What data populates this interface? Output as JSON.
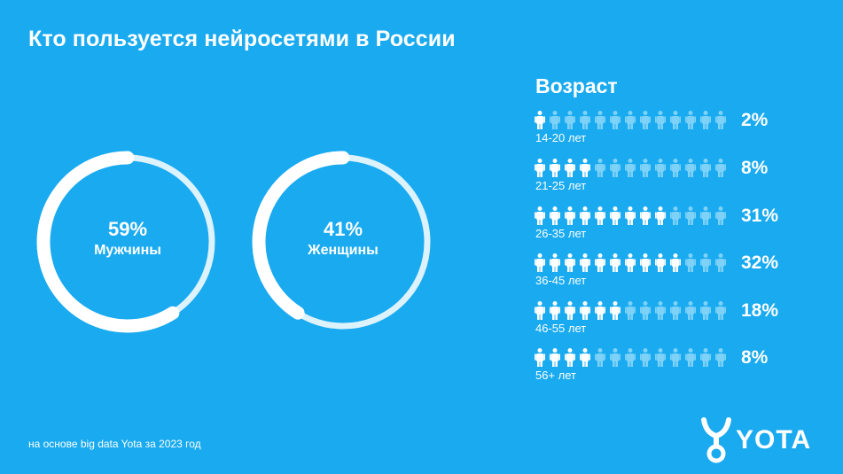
{
  "title": "Кто пользуется нейросетями в России",
  "chart_data": [
    {
      "type": "pie",
      "categories": [
        "Мужчины",
        "Женщины"
      ],
      "values": [
        59,
        41
      ],
      "value_labels": [
        "59%",
        "41%"
      ]
    },
    {
      "type": "bar",
      "title": "Возраст",
      "categories": [
        "14-20 лет",
        "21-25 лет",
        "26-35 лет",
        "36-45 лет",
        "46-55 лет",
        "56+ лет"
      ],
      "values": [
        2,
        8,
        31,
        32,
        18,
        8
      ],
      "value_labels": [
        "2%",
        "8%",
        "31%",
        "32%",
        "18%",
        "8%"
      ],
      "filled_icons": [
        1,
        4,
        9,
        10,
        6,
        4
      ],
      "icons_per_row": 13
    }
  ],
  "footnote": "на основе big data Yota за 2023 год",
  "logo": {
    "text": "YOTA",
    "icon": "yota-figure-icon"
  },
  "colors": {
    "background": "#19AAF0",
    "light": "#ffffff",
    "faded": "#7FD2F7"
  }
}
